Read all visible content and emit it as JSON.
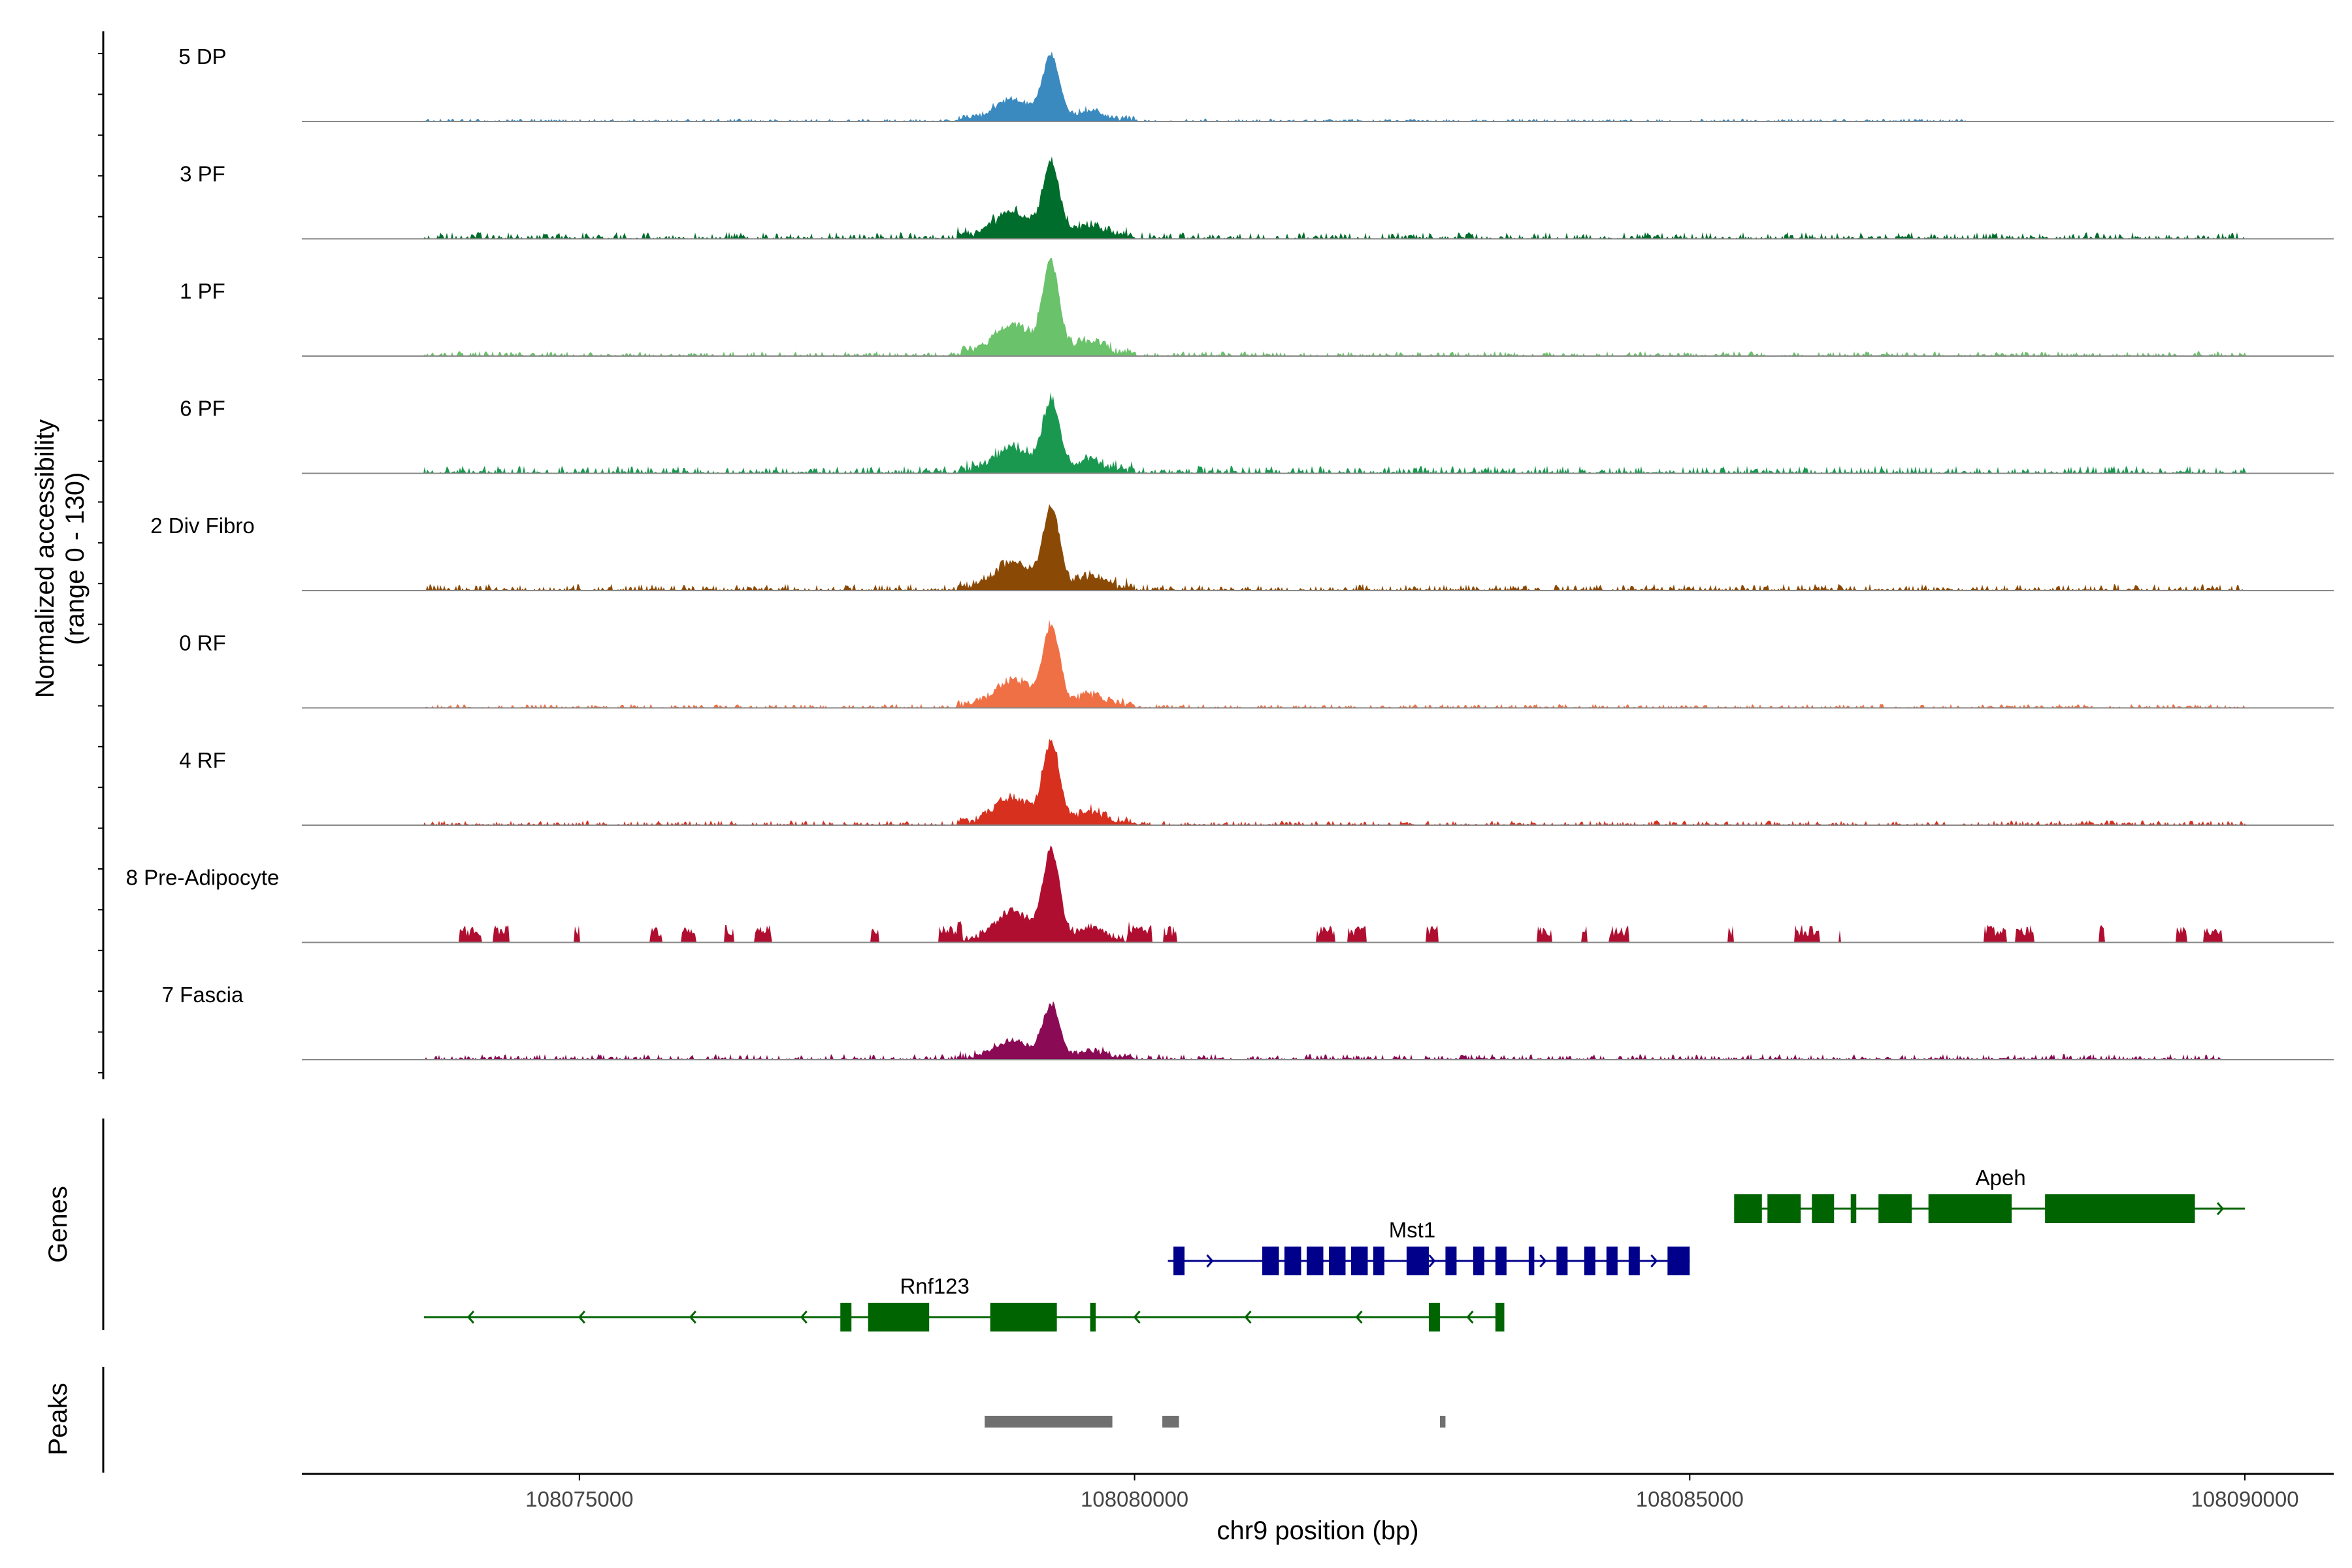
{
  "chart_data": {
    "type": "area",
    "title": "",
    "xlabel": "chr9 position (bp)",
    "ylabel": "Normalized accessibility",
    "ylabel_sub": "(range 0 - 130)",
    "y_range": [
      0,
      130
    ],
    "xlim": [
      108072500,
      108090800
    ],
    "x_ticks": [
      108075000,
      108080000,
      108085000,
      108090000
    ],
    "x_tick_labels": [
      "108075000",
      "108080000",
      "108085000",
      "108090000"
    ],
    "tracks": [
      {
        "name": "5 DP",
        "color": "#3a8ac0",
        "peak_height": 0.72,
        "noise": 0.03,
        "noise_start": 108073600,
        "noise_end": 108087500,
        "sparse": false
      },
      {
        "name": "3 PF",
        "color": "#006d2c",
        "peak_height": 0.82,
        "noise": 0.07,
        "noise_start": 108073600,
        "noise_end": 108090000,
        "sparse": false
      },
      {
        "name": "1 PF",
        "color": "#6ac26a",
        "peak_height": 1.0,
        "noise": 0.05,
        "noise_start": 108073600,
        "noise_end": 108090000,
        "sparse": false
      },
      {
        "name": "6 PF",
        "color": "#1a9850",
        "peak_height": 0.78,
        "noise": 0.08,
        "noise_start": 108073600,
        "noise_end": 108090000,
        "sparse": false
      },
      {
        "name": "2 Div Fibro",
        "color": "#8a4a06",
        "peak_height": 0.88,
        "noise": 0.07,
        "noise_start": 108073600,
        "noise_end": 108090000,
        "sparse": false
      },
      {
        "name": "0 RF",
        "color": "#f07046",
        "peak_height": 0.88,
        "noise": 0.04,
        "noise_start": 108073600,
        "noise_end": 108090000,
        "sparse": false
      },
      {
        "name": "4 RF",
        "color": "#d7301f",
        "peak_height": 0.88,
        "noise": 0.05,
        "noise_start": 108073600,
        "noise_end": 108090000,
        "sparse": false
      },
      {
        "name": "8 Pre-Adipocyte",
        "color": "#b00e30",
        "peak_height": 1.0,
        "noise": 0.18,
        "noise_start": 108073600,
        "noise_end": 108089800,
        "sparse": true
      },
      {
        "name": "7 Fascia",
        "color": "#8b0a55",
        "peak_height": 0.58,
        "noise": 0.06,
        "noise_start": 108073600,
        "noise_end": 108089800,
        "sparse": false
      }
    ],
    "genes_label": "Genes",
    "peaks_label": "Peaks",
    "genes": [
      {
        "name": "Apeh",
        "strand": "+",
        "color": "#006400",
        "start": 108085400,
        "end": 108090000,
        "row": 0,
        "label_pos": 108087800,
        "exons": [
          [
            108085400,
            108085650
          ],
          [
            108085700,
            108086000
          ],
          [
            108086100,
            108086300
          ],
          [
            108086450,
            108086500
          ],
          [
            108086700,
            108087000
          ],
          [
            108087150,
            108087900
          ],
          [
            108088200,
            108089550
          ]
        ]
      },
      {
        "name": "Mst1",
        "strand": "+",
        "color": "#00008b",
        "start": 108080300,
        "end": 108085000,
        "row": 1,
        "label_pos": 108082500,
        "exons": [
          [
            108080350,
            108080450
          ],
          [
            108081150,
            108081300
          ],
          [
            108081350,
            108081500
          ],
          [
            108081550,
            108081700
          ],
          [
            108081750,
            108081900
          ],
          [
            108081950,
            108082100
          ],
          [
            108082150,
            108082250
          ],
          [
            108082450,
            108082650
          ],
          [
            108082800,
            108082900
          ],
          [
            108083050,
            108083150
          ],
          [
            108083250,
            108083350
          ],
          [
            108083550,
            108083600
          ],
          [
            108083800,
            108083900
          ],
          [
            108084050,
            108084150
          ],
          [
            108084250,
            108084350
          ],
          [
            108084450,
            108084550
          ],
          [
            108084800,
            108085000
          ]
        ]
      },
      {
        "name": "Rnf123",
        "strand": "-",
        "color": "#006400",
        "start": 108073600,
        "end": 108083300,
        "row": 2,
        "label_pos": 108078200,
        "exons": [
          [
            108077350,
            108077450
          ],
          [
            108077600,
            108078150
          ],
          [
            108078700,
            108079300
          ],
          [
            108079600,
            108079650
          ],
          [
            108082650,
            108082750
          ],
          [
            108083250,
            108083330
          ]
        ]
      }
    ],
    "peaks": [
      [
        108078650,
        108079800
      ],
      [
        108080250,
        108080400
      ],
      [
        108082750,
        108082800
      ]
    ]
  }
}
